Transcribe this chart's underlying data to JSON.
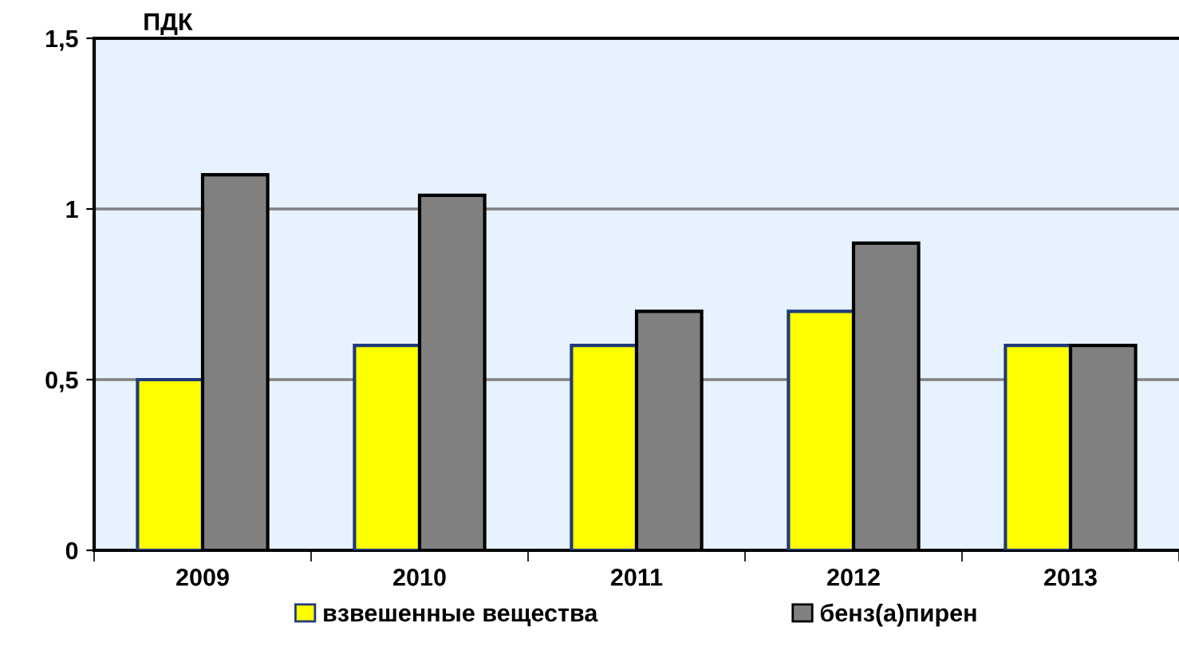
{
  "chart_data": {
    "type": "bar",
    "ylabel": "ПДК",
    "categories": [
      "2009",
      "2010",
      "2011",
      "2012",
      "2013"
    ],
    "series": [
      {
        "name": "взвешенные вещества",
        "color": "#ffff00",
        "values": [
          0.5,
          0.6,
          0.6,
          0.7,
          0.6
        ]
      },
      {
        "name": "бенз(а)пирен",
        "color": "#808080",
        "values": [
          1.1,
          1.04,
          0.7,
          0.9,
          0.6
        ]
      }
    ],
    "ylim": [
      0,
      1.5
    ],
    "yticks": [
      {
        "value": 0,
        "label": "0"
      },
      {
        "value": 0.5,
        "label": "0,5"
      },
      {
        "value": 1,
        "label": "1"
      },
      {
        "value": 1.5,
        "label": "1,5"
      }
    ],
    "grid": "y",
    "legend": "bottom"
  }
}
